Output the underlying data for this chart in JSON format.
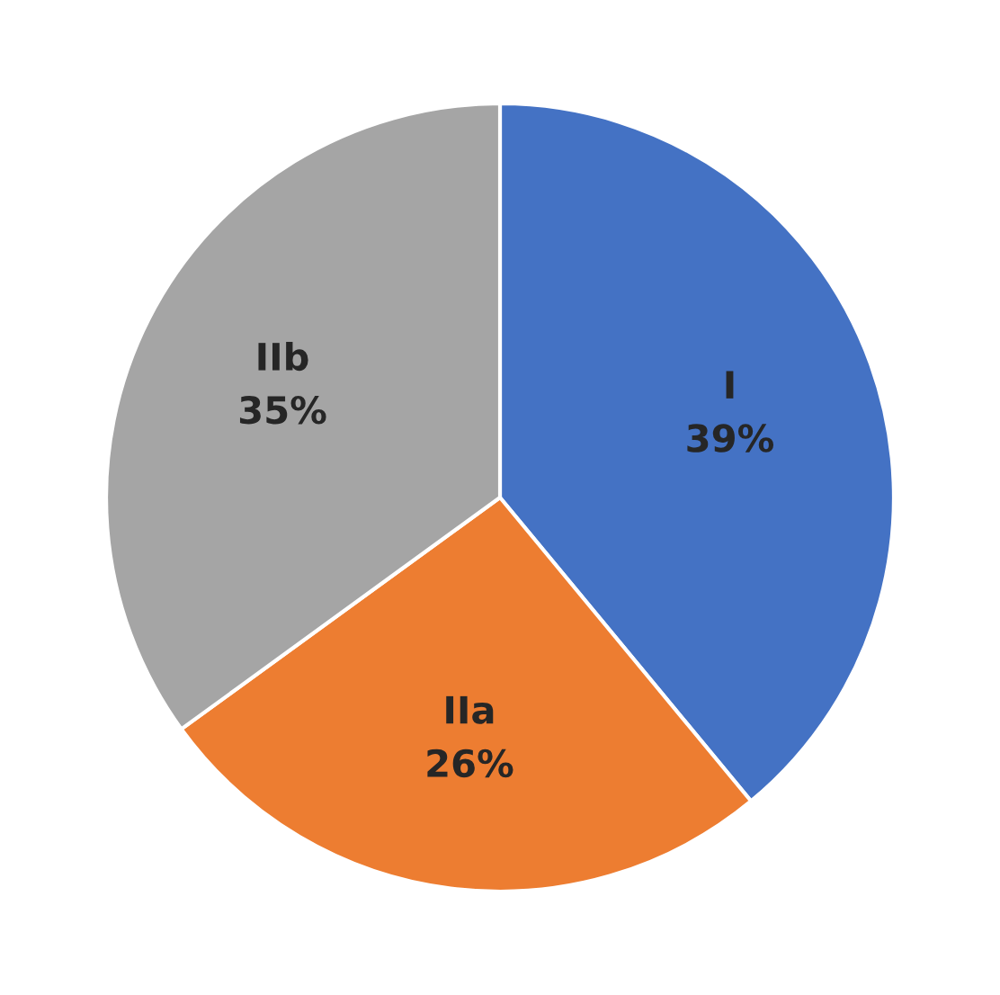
{
  "chart_data": {
    "type": "pie",
    "categories": [
      "I",
      "IIa",
      "IIb"
    ],
    "values": [
      39,
      26,
      35
    ],
    "value_labels": [
      "39%",
      "26%",
      "35%"
    ],
    "colors": [
      "#4472c4",
      "#ed7d31",
      "#a5a5a5"
    ]
  }
}
